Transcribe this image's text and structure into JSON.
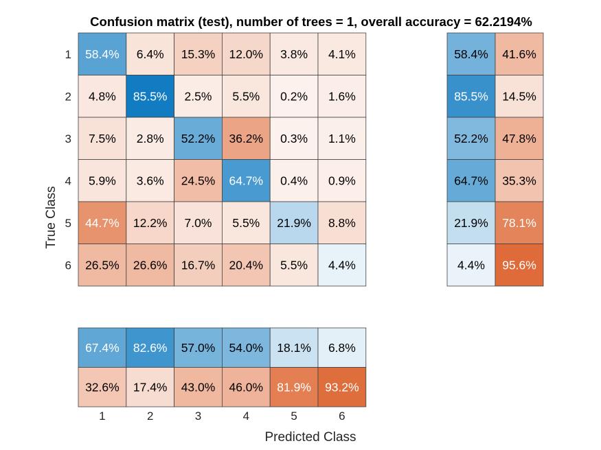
{
  "chart_data": {
    "type": "heatmap",
    "title": "Confusion matrix (test), number of trees = 1, overall accuracy = 62.2194%",
    "xlabel": "Predicted Class",
    "ylabel": "True Class",
    "classes": [
      "1",
      "2",
      "3",
      "4",
      "5",
      "6"
    ],
    "unit": "%",
    "matrix": [
      [
        58.4,
        6.4,
        15.3,
        12.0,
        3.8,
        4.1
      ],
      [
        4.8,
        85.5,
        2.5,
        5.5,
        0.2,
        1.6
      ],
      [
        7.5,
        2.8,
        52.2,
        36.2,
        0.3,
        1.1
      ],
      [
        5.9,
        3.6,
        24.5,
        64.7,
        0.4,
        0.9
      ],
      [
        44.7,
        12.2,
        7.0,
        5.5,
        21.9,
        8.8
      ],
      [
        26.5,
        26.6,
        16.7,
        20.4,
        5.5,
        4.4
      ]
    ],
    "row_summary": [
      [
        58.4,
        41.6
      ],
      [
        85.5,
        14.5
      ],
      [
        52.2,
        47.8
      ],
      [
        64.7,
        35.3
      ],
      [
        21.9,
        78.1
      ],
      [
        4.4,
        95.6
      ]
    ],
    "column_summary": [
      [
        67.4,
        82.6,
        57.0,
        54.0,
        18.1,
        6.8
      ],
      [
        32.6,
        17.4,
        43.0,
        46.0,
        81.9,
        93.2
      ]
    ],
    "colors": {
      "positive": "#0072bd",
      "negative": "#d95319",
      "grid": "#404040",
      "text_dark": "#000000",
      "text_light": "#ffffff"
    }
  }
}
